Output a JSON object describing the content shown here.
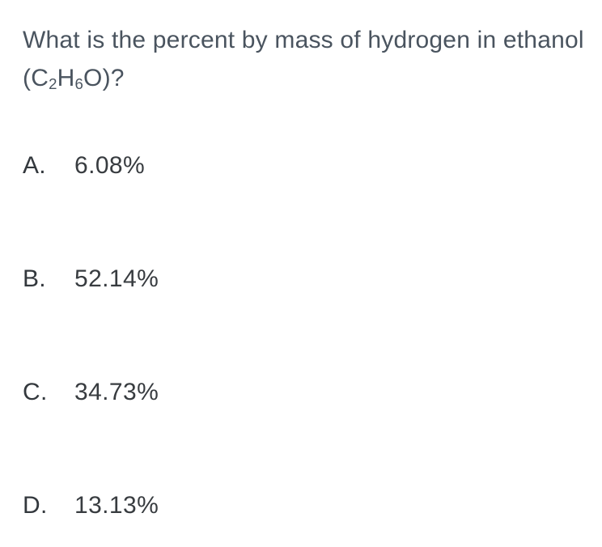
{
  "question": {
    "part1": "What is the percent by mass of hydrogen in ethanol (C",
    "sub1": "2",
    "part2": "H",
    "sub2": "6",
    "part3": "O)?"
  },
  "options": [
    {
      "label": "A.",
      "value": "6.08%"
    },
    {
      "label": "B.",
      "value": "52.14%"
    },
    {
      "label": "C.",
      "value": "34.73%"
    },
    {
      "label": "D.",
      "value": "13.13%"
    }
  ],
  "colors": {
    "background": "#ffffff",
    "question_text": "#4a545f",
    "option_letter": "#33383d",
    "option_value": "#383c40"
  }
}
